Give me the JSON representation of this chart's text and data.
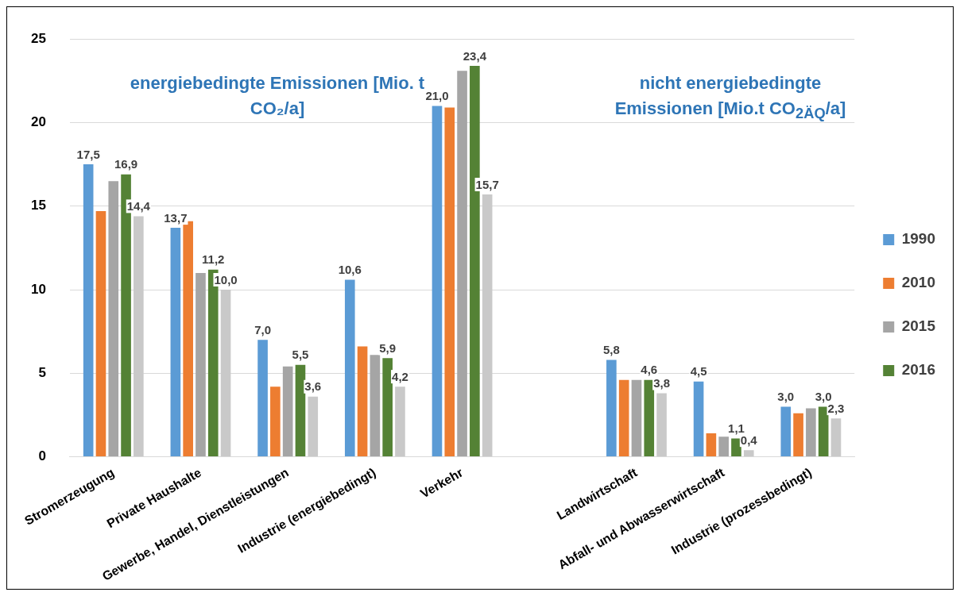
{
  "chart_data": {
    "type": "bar",
    "categories": [
      "Stromerzeugung",
      "Private Haushalte",
      "Gewerbe, Handel, Dienstleistungen",
      "Industrie (energiebedingt)",
      "Verkehr",
      null,
      "Landwirtschaft",
      "Abfall- und Abwasserwirtschaft",
      "Industrie (prozessbedingt)"
    ],
    "series": [
      {
        "name": "1990",
        "color": "#5b9bd5",
        "values": [
          17.5,
          13.7,
          7.0,
          10.6,
          21.0,
          null,
          5.8,
          4.5,
          3.0
        ],
        "value_labels": [
          "17,5",
          "13,7",
          "7,0",
          "10,6",
          "21,0",
          null,
          "5,8",
          "4,5",
          "3,0"
        ]
      },
      {
        "name": "2010",
        "color": "#ed7d31",
        "values": [
          14.7,
          14.1,
          4.2,
          6.6,
          20.9,
          null,
          4.6,
          1.4,
          2.6
        ]
      },
      {
        "name": "2015",
        "color": "#a5a5a5",
        "values": [
          16.5,
          11.0,
          5.4,
          6.1,
          23.1,
          null,
          4.6,
          1.2,
          2.9
        ]
      },
      {
        "name": "2016",
        "color": "#548235",
        "values": [
          16.9,
          11.2,
          5.5,
          5.9,
          23.4,
          null,
          4.6,
          1.1,
          3.0
        ],
        "value_labels": [
          "16,9",
          "11,2",
          "5,5",
          "5,9",
          "23,4",
          null,
          "4,6",
          "1,1",
          "3,0"
        ]
      },
      {
        "color": "#c9c9c9",
        "values": [
          14.4,
          10.0,
          3.6,
          4.2,
          15.7,
          null,
          3.8,
          0.4,
          2.3
        ],
        "value_labels": [
          "14,4",
          "10,0",
          "3,6",
          "4,2",
          "15,7",
          null,
          "3,8",
          "0,4",
          "2,3"
        ]
      }
    ],
    "ylim": [
      0,
      25
    ],
    "yticks": [
      0,
      5,
      10,
      15,
      20,
      25
    ],
    "grid": "y",
    "legend": "right",
    "annotations": [
      "energiebedingte Emissionen [Mio. t CO₂/a]",
      "nicht energiebedingte Emissionen [Mio.t CO$_{2ÄQ}$/a]"
    ]
  }
}
